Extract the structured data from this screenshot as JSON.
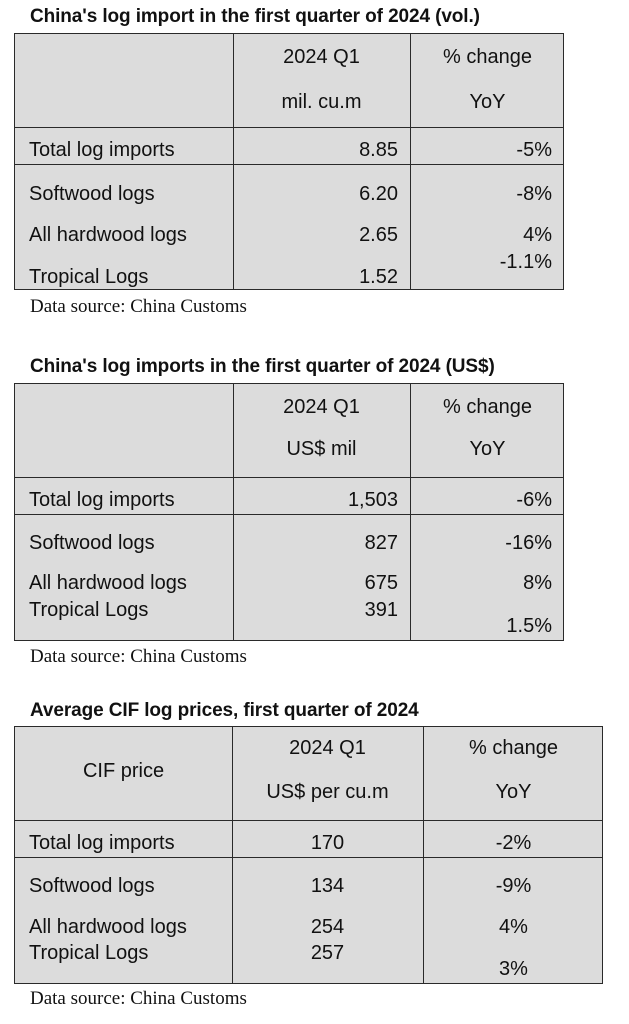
{
  "tables": [
    {
      "title": "China's log import in the first quarter of 2024 (vol.)",
      "corner_label": "",
      "col1_header": "2024 Q1",
      "col1_unit": "mil. cu.m",
      "col2_header": "% change",
      "col2_unit": "YoY",
      "rows": [
        {
          "label": "Total log imports",
          "value": "8.85",
          "change": "-5%"
        },
        {
          "label": "Softwood logs",
          "value": "6.20",
          "change": "-8%"
        },
        {
          "label": "All hardwood logs",
          "value": "2.65",
          "change": "4%"
        },
        {
          "label": "Tropical Logs",
          "value": "1.52",
          "change": "-1.1%"
        }
      ],
      "source": "Data source: China Customs"
    },
    {
      "title": "China's log imports in the first quarter of 2024 (US$)",
      "corner_label": "",
      "col1_header": "2024 Q1",
      "col1_unit": "US$ mil",
      "col2_header": "% change",
      "col2_unit": "YoY",
      "rows": [
        {
          "label": "Total log imports",
          "value": "1,503",
          "change": "-6%"
        },
        {
          "label": "Softwood logs",
          "value": "827",
          "change": "-16%"
        },
        {
          "label": "All hardwood logs",
          "value": "675",
          "change": "8%"
        },
        {
          "label": "Tropical Logs",
          "value": "391",
          "change": "1.5%"
        }
      ],
      "source": "Data source: China Customs"
    },
    {
      "title": "Average CIF log prices, first quarter of 2024",
      "corner_label": "CIF price",
      "col1_header": "2024 Q1",
      "col1_unit": "US$ per cu.m",
      "col2_header": "% change",
      "col2_unit": "YoY",
      "rows": [
        {
          "label": "Total log imports",
          "value": "170",
          "change": "-2%"
        },
        {
          "label": "Softwood logs",
          "value": "134",
          "change": "-9%"
        },
        {
          "label": "All hardwood logs",
          "value": "254",
          "change": "4%"
        },
        {
          "label": "Tropical Logs",
          "value": "257",
          "change": "3%"
        }
      ],
      "source": "Data source: China Customs"
    }
  ]
}
